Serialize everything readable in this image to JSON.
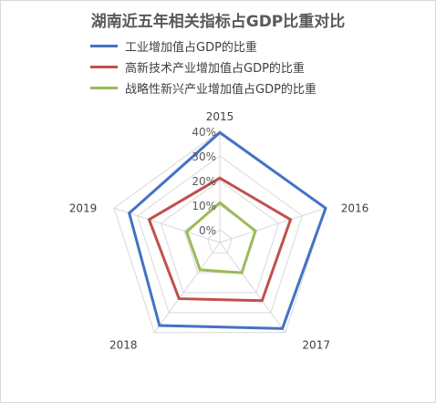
{
  "chart_data": {
    "type": "radar",
    "title": "湖南近五年相关指标占GDP比重对比",
    "categories": [
      "2015",
      "2016",
      "2017",
      "2018",
      "2019"
    ],
    "rlim": [
      0,
      40
    ],
    "ticks": [
      "0%",
      "10%",
      "20%",
      "30%",
      "40%"
    ],
    "tick_values": [
      0,
      10,
      20,
      30,
      40
    ],
    "grid": true,
    "legend_position": "top",
    "series": [
      {
        "name": "工业增加值占GDP的比重",
        "color": "#4472c4",
        "values": [
          39.5,
          40.0,
          38.0,
          36.5,
          33.5
        ]
      },
      {
        "name": "高新技术产业增加值占GDP的比重",
        "color": "#c0504d",
        "values": [
          21.0,
          25.0,
          24.0,
          23.0,
          25.0
        ]
      },
      {
        "name": "战略性新兴产业增加值占GDP的比重",
        "color": "#9bbb59",
        "values": [
          11.0,
          10.0,
          10.0,
          8.5,
          9.0
        ]
      }
    ]
  }
}
